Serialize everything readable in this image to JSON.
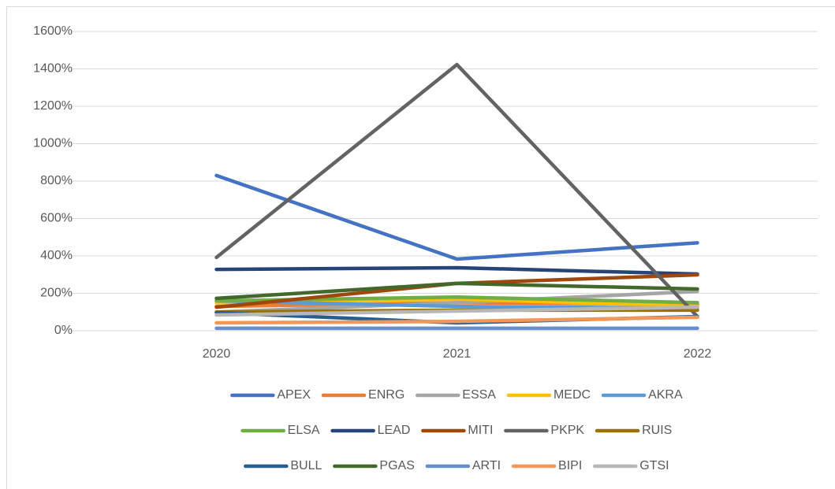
{
  "chart_data": {
    "type": "line",
    "categories": [
      "2020",
      "2021",
      "2022"
    ],
    "series": [
      {
        "name": "APEX",
        "color": "#4472c4",
        "values": [
          830,
          383,
          470
        ]
      },
      {
        "name": "ENRG",
        "color": "#ed7d31",
        "values": [
          130,
          150,
          140
        ]
      },
      {
        "name": "ESSA",
        "color": "#a5a5a5",
        "values": [
          100,
          150,
          210
        ]
      },
      {
        "name": "MEDC",
        "color": "#ffc000",
        "values": [
          150,
          170,
          130
        ]
      },
      {
        "name": "AKRA",
        "color": "#5b9bd5",
        "values": [
          160,
          130,
          120
        ]
      },
      {
        "name": "ELSA",
        "color": "#70ad47",
        "values": [
          160,
          180,
          150
        ]
      },
      {
        "name": "LEAD",
        "color": "#264478",
        "values": [
          328,
          337,
          303
        ]
      },
      {
        "name": "MITI",
        "color": "#9e480e",
        "values": [
          126,
          253,
          299
        ]
      },
      {
        "name": "PKPK",
        "color": "#636363",
        "values": [
          392,
          1423,
          76
        ]
      },
      {
        "name": "RUIS",
        "color": "#997300",
        "values": [
          100,
          110,
          110
        ]
      },
      {
        "name": "BULL",
        "color": "#255e91",
        "values": [
          97,
          42,
          76
        ]
      },
      {
        "name": "PGAS",
        "color": "#43682b",
        "values": [
          173,
          253,
          223
        ]
      },
      {
        "name": "ARTI",
        "color": "#698ed0",
        "values": [
          13,
          13,
          13
        ]
      },
      {
        "name": "BIPI",
        "color": "#f1975a",
        "values": [
          42,
          50,
          72
        ]
      },
      {
        "name": "GTSI",
        "color": "#b7b7b7",
        "values": [
          84,
          105,
          126
        ]
      }
    ],
    "ylim": [
      0,
      1600
    ],
    "yticks": [
      {
        "value": 0,
        "label": "0%"
      },
      {
        "value": 200,
        "label": "200%"
      },
      {
        "value": 400,
        "label": "400%"
      },
      {
        "value": 600,
        "label": "600%"
      },
      {
        "value": 800,
        "label": "800%"
      },
      {
        "value": 1000,
        "label": "1000%"
      },
      {
        "value": 1200,
        "label": "1200%"
      },
      {
        "value": 1400,
        "label": "1400%"
      },
      {
        "value": 1600,
        "label": "1600%"
      }
    ],
    "grid": true,
    "legend": "bottom"
  }
}
